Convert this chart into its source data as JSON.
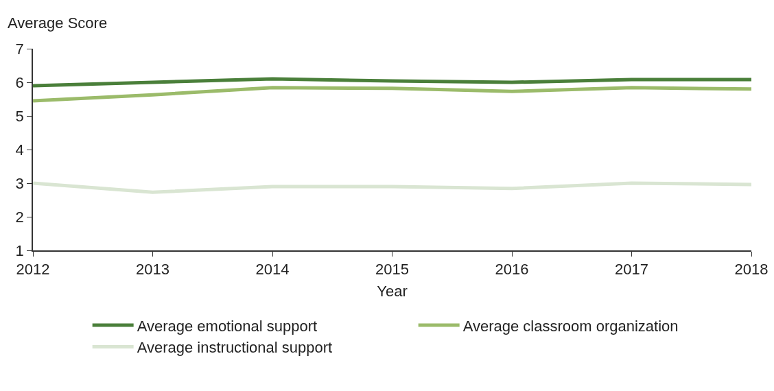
{
  "chart_data": {
    "type": "line",
    "xlabel": "Year",
    "ylabel": "Average Score",
    "x": [
      2012,
      2013,
      2014,
      2015,
      2016,
      2017,
      2018
    ],
    "xlim": [
      2012,
      2018
    ],
    "xticks": [
      2012,
      2013,
      2014,
      2015,
      2016,
      2017,
      2018
    ],
    "ylim": [
      1,
      7
    ],
    "yticks": [
      1,
      2,
      3,
      4,
      5,
      6,
      7
    ],
    "grid": false,
    "legend": "bottom",
    "marker": "none",
    "line_style": "solid",
    "series": [
      {
        "name": "Average emotional support",
        "color": "#4a7f3a",
        "values": [
          5.9,
          6.0,
          6.1,
          6.04,
          6.0,
          6.08,
          6.08
        ]
      },
      {
        "name": "Average classroom organization",
        "color": "#9bbb6a",
        "values": [
          5.45,
          5.63,
          5.84,
          5.82,
          5.73,
          5.84,
          5.8
        ]
      },
      {
        "name": "Average instructional support",
        "color": "#d9e5d2",
        "values": [
          3.0,
          2.73,
          2.9,
          2.9,
          2.84,
          3.0,
          2.96
        ]
      }
    ]
  }
}
